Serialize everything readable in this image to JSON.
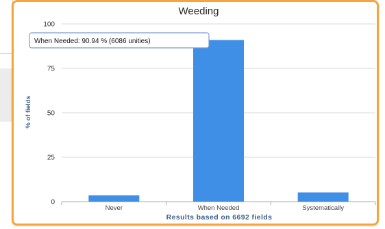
{
  "chart_data": {
    "type": "bar",
    "title": "Weeding",
    "ylabel": "% of fields",
    "xlabel": "Results based on 6692 fields",
    "categories": [
      "Never",
      "When Needed",
      "Systematically"
    ],
    "values": [
      3.6,
      90.94,
      5.2
    ],
    "ylim": [
      0,
      100
    ],
    "yticks": [
      "0",
      "25",
      "50",
      "75",
      "100"
    ],
    "grid": true,
    "legend": "none",
    "bar_color": "#3f8fe6",
    "tooltip": "When Needed: 90.94 % (6086 unities)"
  },
  "colors": {
    "frame": "#f5a53b",
    "grid": "#d8d8d8",
    "axis": "#aaaaaa"
  }
}
